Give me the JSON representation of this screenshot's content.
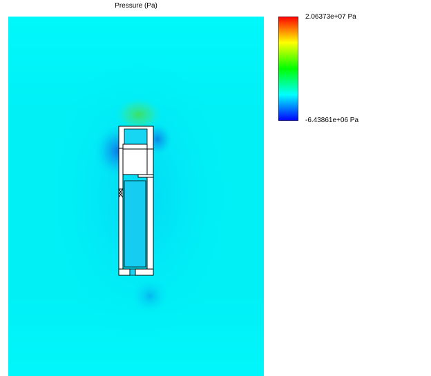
{
  "title": "Pressure (Pa)",
  "colorbar": {
    "max_label": "2.06373e+07 Pa",
    "min_label": "-6.43861e+06 Pa",
    "colormap": [
      "#ff0000",
      "#ffff00",
      "#00ff00",
      "#00ffff",
      "#0000ff"
    ]
  },
  "colors": {
    "background_field": "#00f2f7",
    "low_pressure": "#0a7fe6",
    "high_pressure": "#3ee062",
    "profile_fill": "#ffffff",
    "profile_stroke": "#000000"
  }
}
